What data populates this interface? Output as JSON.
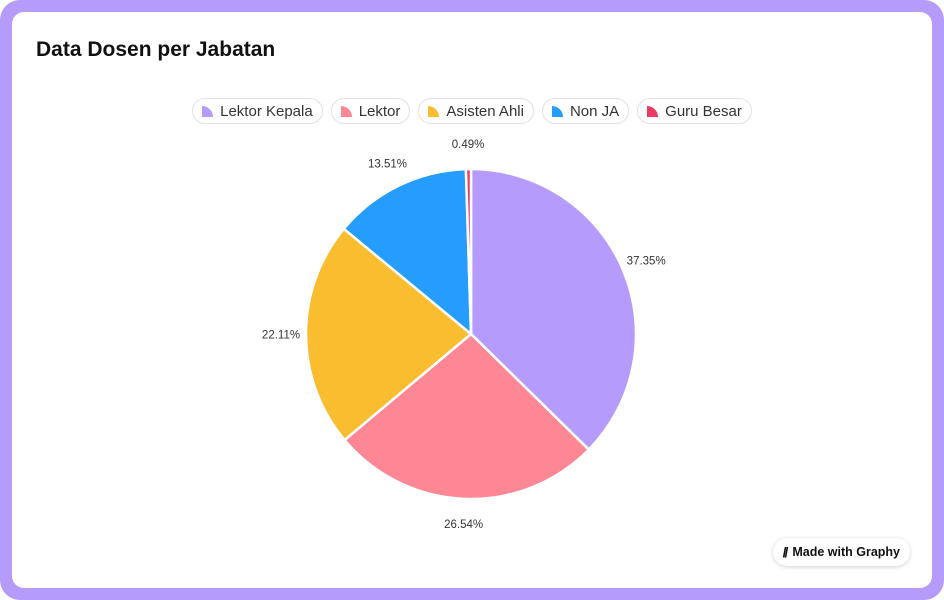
{
  "chart_data": {
    "type": "pie",
    "title": "Data Dosen per Jabatan",
    "legend_position": "top",
    "slices": [
      {
        "name": "Lektor Kepala",
        "value": 37.35,
        "label": "37.35%",
        "color": "#b59bfb"
      },
      {
        "name": "Lektor",
        "value": 26.54,
        "label": "26.54%",
        "color": "#fe8796"
      },
      {
        "name": "Asisten Ahli",
        "value": 22.11,
        "label": "22.11%",
        "color": "#fbbd30"
      },
      {
        "name": "Non JA",
        "value": 13.51,
        "label": "13.51%",
        "color": "#259dfe"
      },
      {
        "name": "Guru Besar",
        "value": 0.49,
        "label": "0.49%",
        "color": "#ec3a63"
      }
    ]
  },
  "badge": {
    "label": "Made with Graphy",
    "icon": "graphy-logo-icon"
  }
}
